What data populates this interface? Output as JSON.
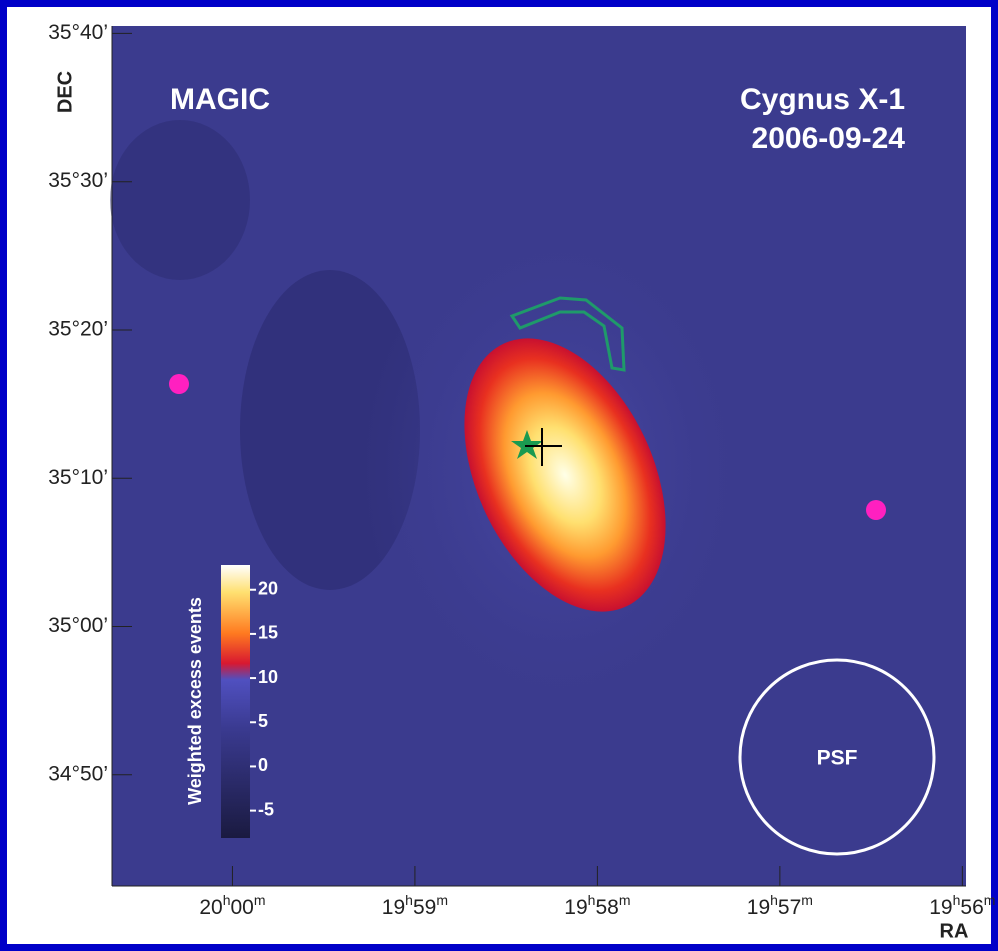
{
  "chart_data": {
    "type": "skymap",
    "labels": {
      "left": "MAGIC",
      "right_1": "Cygnus X-1",
      "right_2": "2006-09-24",
      "psf": "PSF"
    },
    "x_label": "RA",
    "y_label": "DEC",
    "xlim": [
      1200.66,
      1195.98
    ],
    "xticks": [
      {
        "value": 1200,
        "label": "20h00m"
      },
      {
        "value": 1199,
        "label": "19h59m"
      },
      {
        "value": 1198,
        "label": "19h58m"
      },
      {
        "value": 1197,
        "label": "19h57m"
      },
      {
        "value": 1196,
        "label": "19h56m"
      }
    ],
    "ylim": [
      2082.5,
      2140.5
    ],
    "yticks": [
      {
        "value": 2140,
        "label": "35°40’"
      },
      {
        "value": 2130,
        "label": "35°30’"
      },
      {
        "value": 2120,
        "label": "35°20’"
      },
      {
        "value": 2110,
        "label": "35°10’"
      },
      {
        "value": 2100,
        "label": "35°00’"
      },
      {
        "value": 2090,
        "label": "34°50’"
      }
    ],
    "colorbar": {
      "label": "Weighted excess events",
      "clim": [
        -8.1,
        22.8
      ],
      "ticks": [
        -5,
        0,
        5,
        10,
        15,
        20
      ]
    }
  }
}
